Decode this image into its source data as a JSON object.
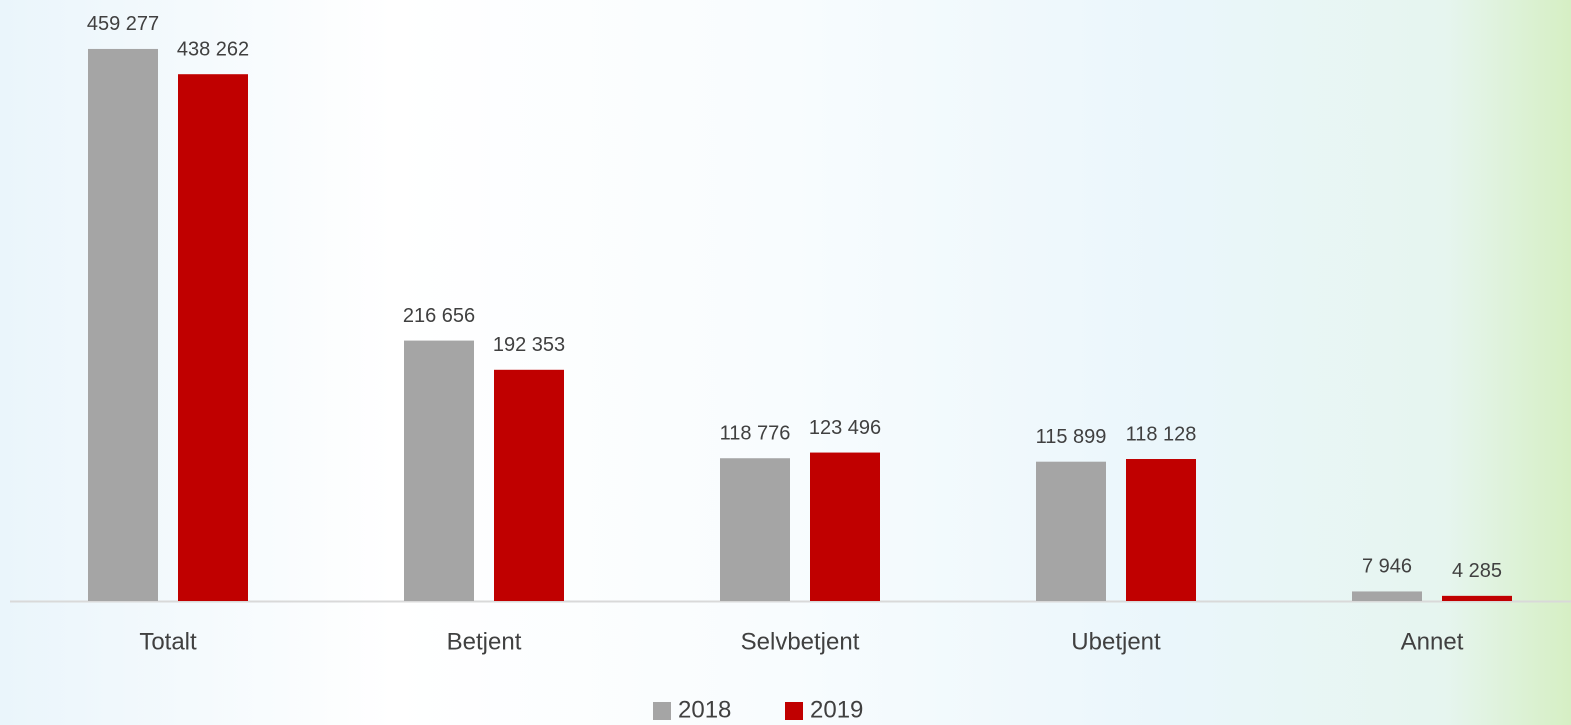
{
  "chart_data": {
    "type": "bar",
    "categories": [
      "Totalt",
      "Betjent",
      "Selvbetjent",
      "Ubetjent",
      "Annet"
    ],
    "series": [
      {
        "name": "2018",
        "color": "#a5a5a5",
        "values": [
          459277,
          216656,
          118776,
          115899,
          7946
        ],
        "value_labels": [
          "459 277",
          "216 656",
          "118 776",
          "115 899",
          "7 946"
        ]
      },
      {
        "name": "2019",
        "color": "#c00000",
        "values": [
          438262,
          192353,
          123496,
          118128,
          4285
        ],
        "value_labels": [
          "438 262",
          "192 353",
          "123 496",
          "118 128",
          "4 285"
        ]
      }
    ],
    "ylim": [
      0,
      500000
    ],
    "legend": "bottom"
  }
}
